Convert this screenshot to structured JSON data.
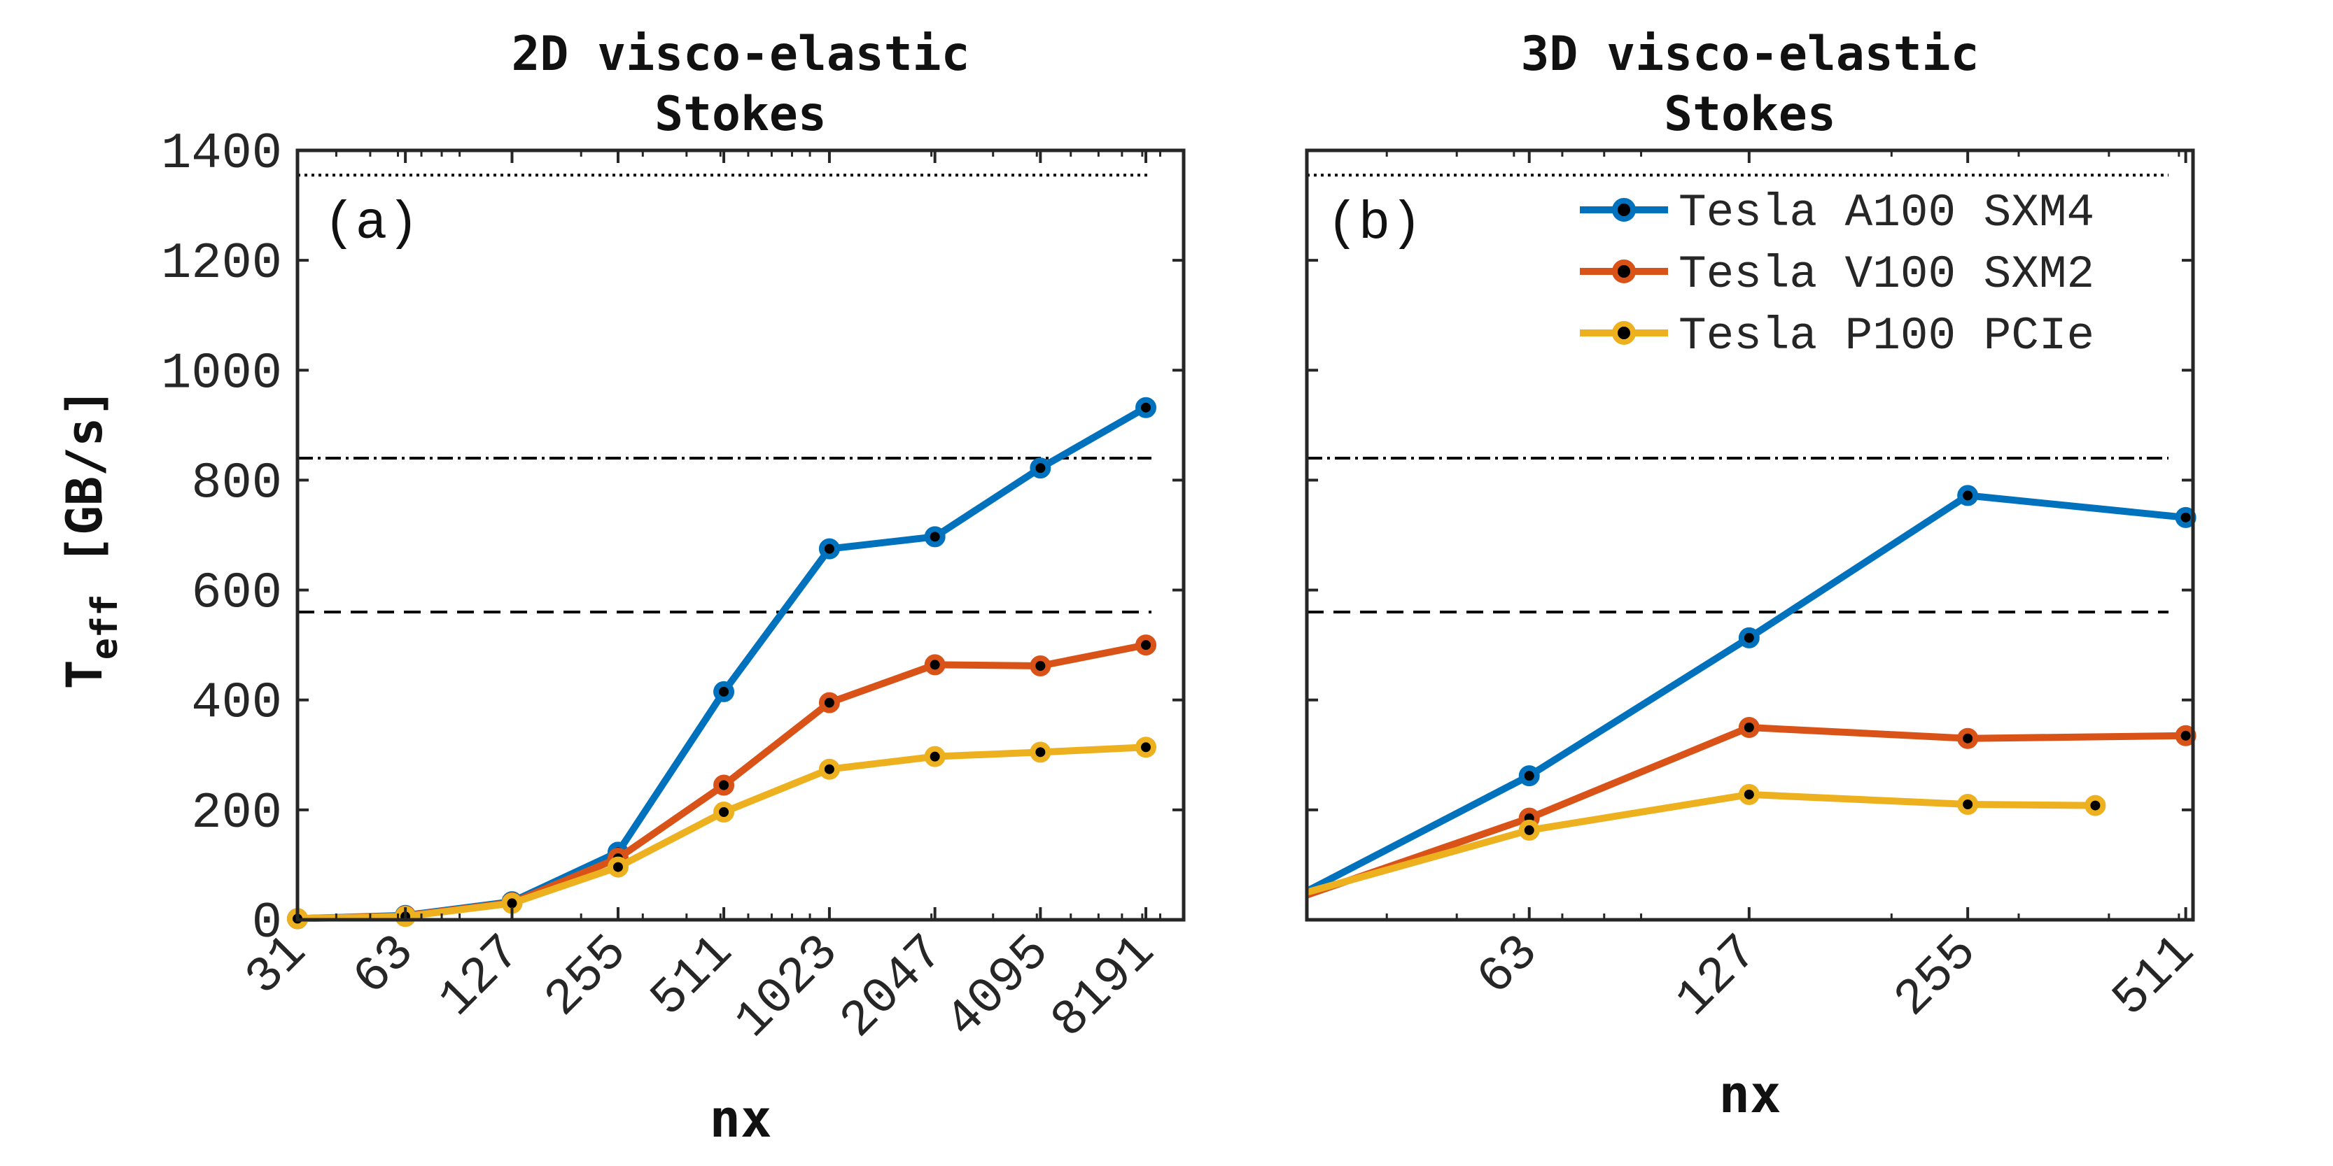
{
  "ylabel": {
    "main": "T",
    "sub": "eff",
    "rest": " [GB/s]"
  },
  "xlabel": "nx",
  "colors": {
    "a100": "#0072BD",
    "v100": "#D95319",
    "p100": "#EDB120",
    "marker_center": "#000000",
    "reference_line": "#000000"
  },
  "legend": {
    "placement": "top-right of panel (b)",
    "entries": [
      "Tesla A100 SXM4",
      "Tesla V100 SXM2",
      "Tesla P100 PCIe"
    ]
  },
  "chart_data": [
    {
      "type": "line",
      "panel_label": "(a)",
      "title": [
        "2D visco-elastic",
        "Stokes"
      ],
      "xlabel": "nx",
      "ylabel": "T_eff [GB/s]",
      "x_scale": "log2",
      "x": [
        31,
        63,
        127,
        255,
        511,
        1023,
        2047,
        4095,
        8191
      ],
      "x_tick_labels": [
        "31",
        "63",
        "127",
        "255",
        "511",
        "1023",
        "2047",
        "4095",
        "8191"
      ],
      "ylim": [
        0,
        1400
      ],
      "y_ticks": [
        0,
        200,
        400,
        600,
        800,
        1000,
        1200,
        1400
      ],
      "grid": false,
      "reference_lines": [
        {
          "style": "dotted",
          "y": 1355
        },
        {
          "style": "dash-dot",
          "y": 840
        },
        {
          "style": "dashed",
          "y": 560
        }
      ],
      "series": [
        {
          "name": "Tesla A100 SXM4",
          "color_key": "a100",
          "x": [
            31,
            63,
            127,
            255,
            511,
            1023,
            2047,
            4095,
            8191
          ],
          "values": [
            2,
            8,
            33,
            123,
            415,
            675,
            697,
            822,
            932
          ]
        },
        {
          "name": "Tesla V100 SXM2",
          "color_key": "v100",
          "x": [
            31,
            63,
            127,
            255,
            511,
            1023,
            2047,
            4095,
            8191
          ],
          "values": [
            2,
            7,
            31,
            112,
            245,
            395,
            464,
            462,
            500
          ]
        },
        {
          "name": "Tesla P100 PCIe",
          "color_key": "p100",
          "x": [
            31,
            63,
            127,
            255,
            511,
            1023,
            2047,
            4095,
            8191
          ],
          "values": [
            2,
            6,
            30,
            96,
            196,
            274,
            297,
            305,
            314
          ]
        }
      ]
    },
    {
      "type": "line",
      "panel_label": "(b)",
      "title": [
        "3D visco-elastic",
        "Stokes"
      ],
      "xlabel": "nx",
      "ylabel": "",
      "x_scale": "log2",
      "x_range": [
        31,
        511
      ],
      "x_tick_labels": [
        "63",
        "127",
        "255",
        "511"
      ],
      "x_ticks": [
        63,
        127,
        255,
        511
      ],
      "ylim": [
        0,
        1400
      ],
      "grid": false,
      "reference_lines": [
        {
          "style": "dotted",
          "y": 1355
        },
        {
          "style": "dash-dot",
          "y": 840
        },
        {
          "style": "dashed",
          "y": 560
        }
      ],
      "series": [
        {
          "name": "Tesla A100 SXM4",
          "color_key": "a100",
          "x": [
            31,
            63,
            127,
            255,
            511
          ],
          "values": [
            52,
            262,
            513,
            772,
            732
          ]
        },
        {
          "name": "Tesla V100 SXM2",
          "color_key": "v100",
          "x": [
            31,
            63,
            127,
            255,
            511
          ],
          "values": [
            45,
            185,
            350,
            330,
            335
          ]
        },
        {
          "name": "Tesla P100 PCIe",
          "color_key": "p100",
          "x": [
            31,
            63,
            127,
            255,
            383
          ],
          "values": [
            50,
            163,
            228,
            210,
            208
          ]
        }
      ]
    }
  ]
}
